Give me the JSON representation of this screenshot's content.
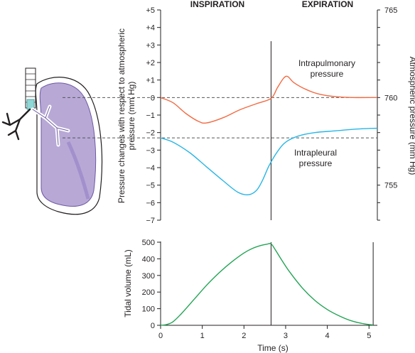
{
  "chart_data": [
    {
      "type": "line",
      "phases": [
        "INSPIRATION",
        "EXPIRATION"
      ],
      "xlim": [
        0,
        5.2
      ],
      "ylabel": "Pressure changes with respect to atmospheric pressure (mm Hg)",
      "ylim": [
        -7,
        5
      ],
      "yticks": [
        "+5",
        "+4",
        "+3",
        "+2",
        "+1",
        "0",
        "−1",
        "−2",
        "−3",
        "−4",
        "−5",
        "−6",
        "−7"
      ],
      "ylabel_right": "Atmospheric pressure (mm Hg)",
      "yticks_right": [
        "765",
        "760",
        "755"
      ],
      "yticks_right_values": [
        5,
        0,
        -5
      ],
      "reference_lines": [
        0,
        -2.3
      ],
      "divider_x": 2.65,
      "series": [
        {
          "name": "Intrapulmonary pressure",
          "color": "#f26b43",
          "x": [
            0,
            0.3,
            0.6,
            0.9,
            1.1,
            1.5,
            1.9,
            2.3,
            2.65,
            2.8,
            2.95,
            3.05,
            3.2,
            3.5,
            3.8,
            4.2,
            4.6,
            5.2
          ],
          "y": [
            0,
            -0.3,
            -0.9,
            -1.35,
            -1.45,
            -1.15,
            -0.7,
            -0.35,
            -0.05,
            0.55,
            1.1,
            1.2,
            0.85,
            0.45,
            0.2,
            0.05,
            0,
            0
          ]
        },
        {
          "name": "Intrapleural pressure",
          "color": "#29b6e6",
          "x": [
            0,
            0.3,
            0.7,
            1.1,
            1.5,
            1.85,
            2.1,
            2.3,
            2.45,
            2.6,
            2.8,
            3.0,
            3.3,
            3.7,
            4.2,
            4.7,
            5.2
          ],
          "y": [
            -2.3,
            -2.55,
            -3.15,
            -3.95,
            -4.75,
            -5.4,
            -5.55,
            -5.3,
            -4.7,
            -3.9,
            -3.1,
            -2.55,
            -2.2,
            -2.0,
            -1.9,
            -1.8,
            -1.75
          ]
        }
      ]
    },
    {
      "type": "line",
      "xlabel": "Time (s)",
      "xlim": [
        0,
        5.2
      ],
      "xticks": [
        0,
        1,
        2,
        3,
        4,
        5
      ],
      "ylabel": "Tidal volume (mL)",
      "ylim": [
        0,
        500
      ],
      "yticks": [
        0,
        100,
        200,
        300,
        400,
        500
      ],
      "divider_x": [
        2.65,
        5.1
      ],
      "series": [
        {
          "color": "#22a455",
          "x": [
            0,
            0.15,
            0.3,
            0.5,
            0.8,
            1.1,
            1.4,
            1.7,
            2.0,
            2.2,
            2.4,
            2.55,
            2.65,
            2.75,
            2.9,
            3.1,
            3.4,
            3.7,
            4.0,
            4.3,
            4.6,
            4.9,
            5.1
          ],
          "y": [
            0,
            5,
            22,
            70,
            155,
            240,
            315,
            380,
            435,
            462,
            480,
            488,
            490,
            455,
            395,
            320,
            225,
            150,
            95,
            55,
            25,
            8,
            2
          ]
        }
      ]
    }
  ]
}
